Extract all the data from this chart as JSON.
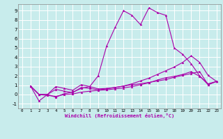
{
  "xlabel": "Windchill (Refroidissement éolien,°C)",
  "bg_color": "#c8ecec",
  "line_color": "#aa00aa",
  "grid_color": "#ffffff",
  "xlim": [
    -0.5,
    23.5
  ],
  "ylim": [
    -1.5,
    9.7
  ],
  "xticks": [
    0,
    1,
    2,
    3,
    4,
    5,
    6,
    7,
    8,
    9,
    10,
    11,
    12,
    13,
    14,
    15,
    16,
    17,
    18,
    19,
    20,
    21,
    22,
    23
  ],
  "yticks": [
    -1,
    0,
    1,
    2,
    3,
    4,
    5,
    6,
    7,
    8,
    9
  ],
  "lines": [
    [
      1,
      0.9,
      2,
      -0.7,
      3,
      0.0,
      4,
      -0.3,
      5,
      0.1,
      6,
      0.25,
      7,
      0.65,
      8,
      0.85,
      9,
      2.0,
      10,
      5.2,
      11,
      7.2,
      12,
      9.0,
      13,
      8.5,
      14,
      7.5,
      15,
      9.3,
      16,
      8.8,
      17,
      8.5,
      18,
      5.0,
      19,
      4.3,
      20,
      3.3,
      21,
      2.0,
      22,
      1.05,
      23,
      1.4
    ],
    [
      1,
      0.9,
      2,
      0.0,
      3,
      0.0,
      4,
      0.85,
      5,
      0.65,
      6,
      0.45,
      7,
      1.05,
      8,
      0.85,
      9,
      0.6,
      10,
      0.65,
      11,
      0.75,
      12,
      0.9,
      13,
      1.05,
      14,
      1.15,
      15,
      1.3,
      16,
      1.45,
      17,
      1.6,
      18,
      1.85,
      19,
      2.05,
      20,
      2.25,
      21,
      2.45,
      22,
      1.05,
      23,
      1.4
    ],
    [
      1,
      0.9,
      2,
      0.0,
      3,
      0.0,
      4,
      0.55,
      5,
      0.35,
      6,
      0.2,
      7,
      0.75,
      8,
      0.65,
      9,
      0.5,
      10,
      0.6,
      11,
      0.75,
      12,
      0.9,
      13,
      1.15,
      14,
      1.45,
      15,
      1.75,
      16,
      2.15,
      17,
      2.55,
      18,
      2.95,
      19,
      3.45,
      20,
      4.15,
      21,
      3.45,
      22,
      2.05,
      23,
      1.4
    ],
    [
      1,
      0.9,
      2,
      0.0,
      3,
      -0.1,
      4,
      -0.2,
      5,
      0.0,
      6,
      0.05,
      7,
      0.25,
      8,
      0.35,
      9,
      0.45,
      10,
      0.5,
      11,
      0.6,
      12,
      0.7,
      13,
      0.85,
      14,
      1.05,
      15,
      1.25,
      16,
      1.55,
      17,
      1.8,
      18,
      1.95,
      19,
      2.15,
      20,
      2.45,
      21,
      1.95,
      22,
      1.15,
      23,
      1.4
    ]
  ]
}
